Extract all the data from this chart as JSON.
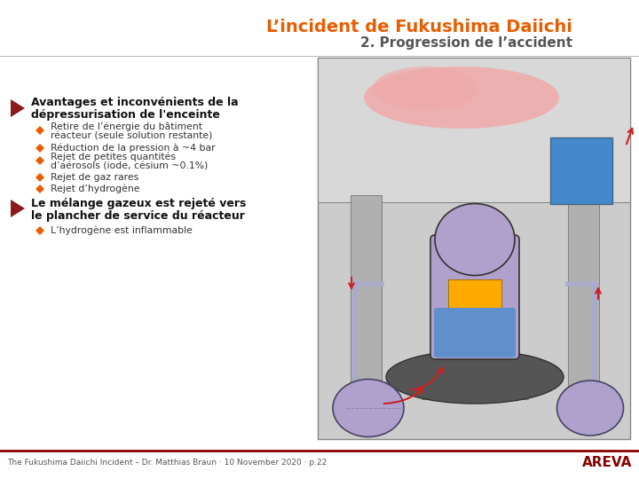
{
  "title_line1": "L’incident de Fukushima Daiichi",
  "title_line2": "2. Progression de l’accident",
  "title_color": "#E85D00",
  "subtitle_color": "#555555",
  "bg_color": "#FFFFFF",
  "footer_text": "The Fukushima Daiichi Incident – Dr. Matthias Braun · 10 November 2020 · p.22",
  "footer_color": "#555555",
  "areva_color": "#8B0000",
  "orange_color": "#E85D00",
  "dark_red_color": "#8B1A1A",
  "separator_color": "#8B0000",
  "gray_bg": "#CCCCCC",
  "gray_med": "#AAAAAA",
  "reactor_gray": "#B0B0B0",
  "pink_cloud": "#F0A0A0",
  "purple_vessel": "#B0A0CC",
  "blue_water": "#6090CC",
  "blue_tank": "#4488CC",
  "red_arrow": "#CC2222",
  "yellow_core": "#FFAA00"
}
